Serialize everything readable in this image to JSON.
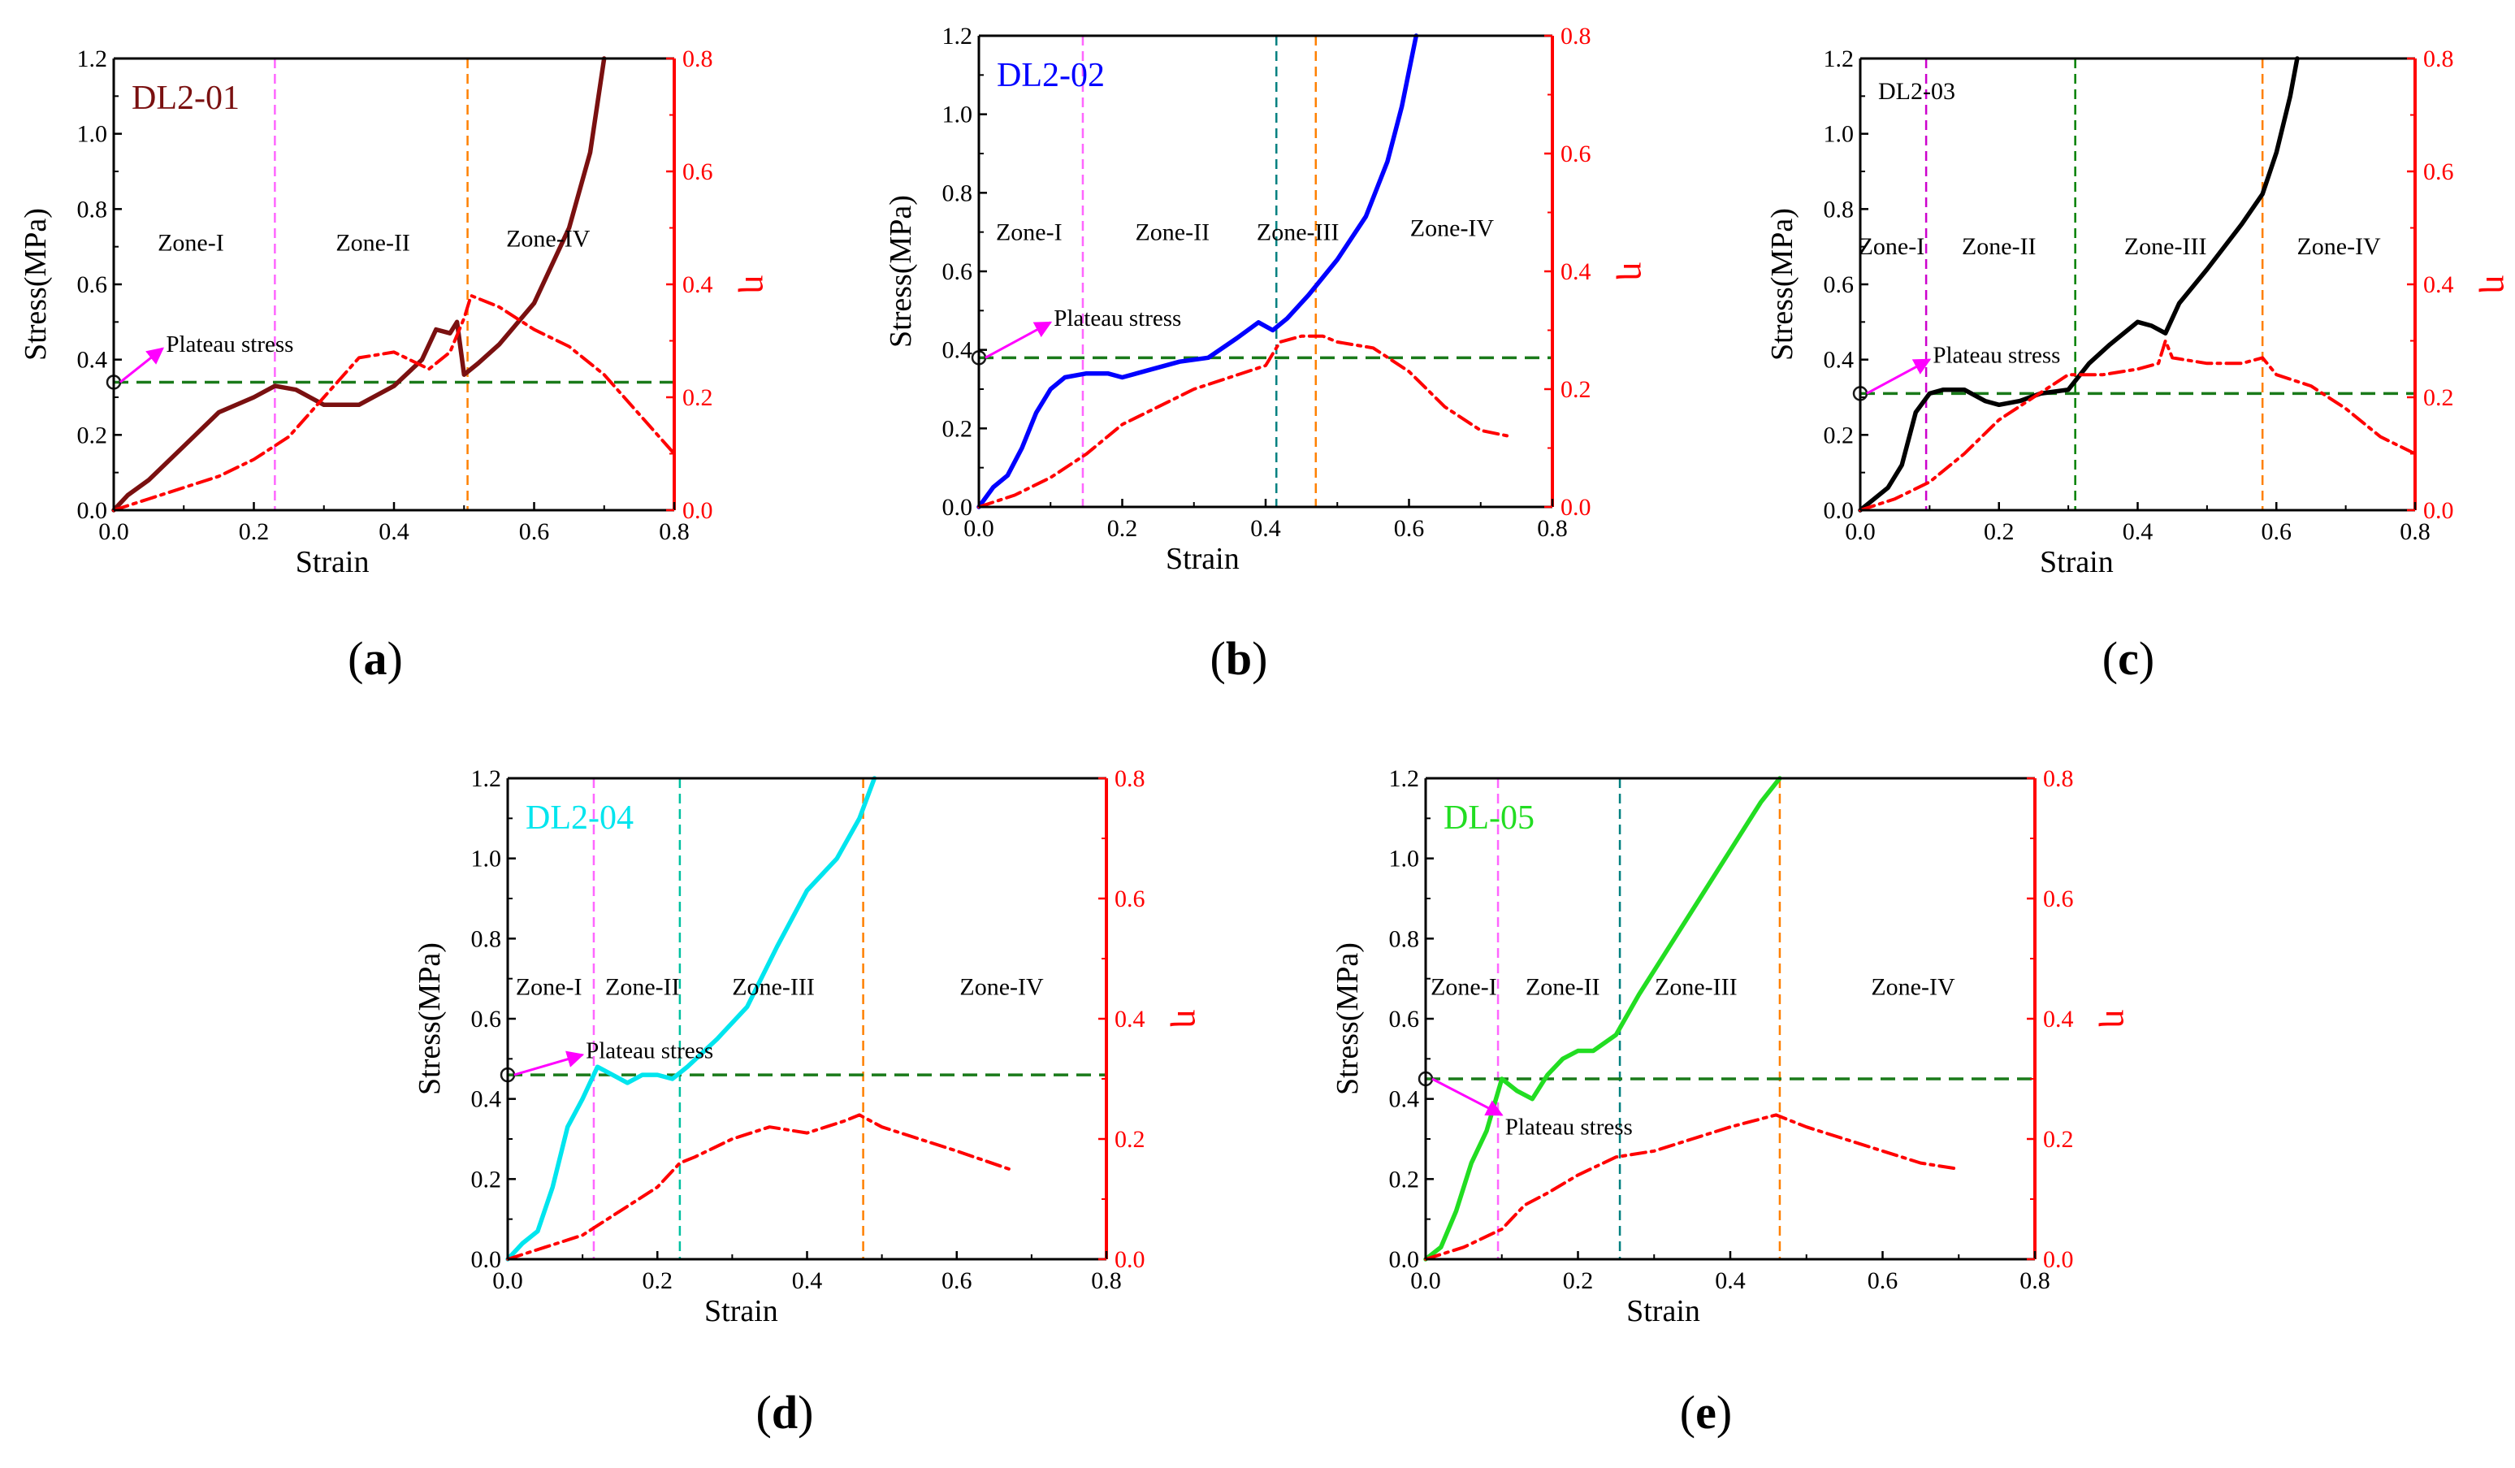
{
  "chart_data": [
    {
      "panel_label": "(a)",
      "type": "line",
      "title": "DL2-01",
      "title_color": "#7a1010",
      "xlabel": "Strain",
      "ylabel": "Stress(MPa)",
      "ylabel_right": "η",
      "xlim": [
        0,
        0.8
      ],
      "ylim": [
        0,
        1.2
      ],
      "ylim_right": [
        0,
        0.8
      ],
      "x_ticks": [
        "0.0",
        "0.2",
        "0.4",
        "0.6",
        "0.8"
      ],
      "y_ticks": [
        "0.0",
        "0.2",
        "0.4",
        "0.6",
        "0.8",
        "1.0",
        "1.2"
      ],
      "y_ticks_right": [
        "0.0",
        "0.2",
        "0.4",
        "0.6",
        "0.8"
      ],
      "plateau_stress": 0.34,
      "plateau_label": "Plateau stress",
      "plateau_arrow_to": [
        0.07,
        0.43
      ],
      "zone_lines": [
        {
          "x": 0.23,
          "color": "#ff66ff"
        },
        {
          "x": 0.505,
          "color": "#ff8000"
        }
      ],
      "zone_labels": [
        {
          "text": "Zone-I",
          "x": 0.11,
          "y": 0.69
        },
        {
          "text": "Zone-II",
          "x": 0.37,
          "y": 0.69
        },
        {
          "text": "Zone-IV",
          "x": 0.62,
          "y": 0.7
        }
      ],
      "series": [
        {
          "axis": "left",
          "color": "#7a1010",
          "style": "solid",
          "x": [
            0,
            0.02,
            0.05,
            0.1,
            0.15,
            0.2,
            0.23,
            0.26,
            0.3,
            0.35,
            0.4,
            0.44,
            0.46,
            0.48,
            0.49,
            0.5,
            0.52,
            0.55,
            0.6,
            0.65,
            0.68,
            0.7
          ],
          "y": [
            0,
            0.04,
            0.08,
            0.17,
            0.26,
            0.3,
            0.33,
            0.32,
            0.28,
            0.28,
            0.33,
            0.4,
            0.48,
            0.47,
            0.5,
            0.36,
            0.39,
            0.44,
            0.55,
            0.75,
            0.95,
            1.2
          ]
        },
        {
          "axis": "right",
          "color": "#ff0000",
          "style": "dashdot",
          "x": [
            0,
            0.05,
            0.1,
            0.15,
            0.2,
            0.25,
            0.3,
            0.35,
            0.4,
            0.45,
            0.48,
            0.5,
            0.51,
            0.55,
            0.6,
            0.65,
            0.7,
            0.75,
            0.8
          ],
          "y": [
            0,
            0.02,
            0.04,
            0.06,
            0.09,
            0.13,
            0.2,
            0.27,
            0.28,
            0.25,
            0.28,
            0.34,
            0.38,
            0.36,
            0.32,
            0.29,
            0.24,
            0.17,
            0.1
          ]
        }
      ]
    },
    {
      "panel_label": "(b)",
      "type": "line",
      "title": "DL2-02",
      "title_color": "#0000ff",
      "xlabel": "Strain",
      "ylabel": "Stress(MPa)",
      "ylabel_right": "η",
      "xlim": [
        0,
        0.8
      ],
      "ylim": [
        0,
        1.2
      ],
      "ylim_right": [
        0,
        0.8
      ],
      "x_ticks": [
        "0.0",
        "0.2",
        "0.4",
        "0.6",
        "0.8"
      ],
      "y_ticks": [
        "0.0",
        "0.2",
        "0.4",
        "0.6",
        "0.8",
        "1.0",
        "1.2"
      ],
      "y_ticks_right": [
        "0.0",
        "0.2",
        "0.4",
        "0.6",
        "0.8"
      ],
      "plateau_stress": 0.38,
      "plateau_label": "Plateau stress",
      "plateau_arrow_to": [
        0.1,
        0.47
      ],
      "zone_lines": [
        {
          "x": 0.145,
          "color": "#ff66ff"
        },
        {
          "x": 0.415,
          "color": "#008080"
        },
        {
          "x": 0.47,
          "color": "#ff8000"
        }
      ],
      "zone_labels": [
        {
          "text": "Zone-I",
          "x": 0.07,
          "y": 0.68
        },
        {
          "text": "Zone-II",
          "x": 0.27,
          "y": 0.68
        },
        {
          "text": "Zone-III",
          "x": 0.445,
          "y": 0.68
        },
        {
          "text": "Zone-IV",
          "x": 0.66,
          "y": 0.69
        }
      ],
      "series": [
        {
          "axis": "left",
          "color": "#0000ff",
          "style": "solid",
          "x": [
            0,
            0.02,
            0.04,
            0.06,
            0.08,
            0.1,
            0.12,
            0.15,
            0.18,
            0.2,
            0.24,
            0.28,
            0.32,
            0.36,
            0.39,
            0.41,
            0.43,
            0.46,
            0.5,
            0.54,
            0.57,
            0.59,
            0.61
          ],
          "y": [
            0,
            0.05,
            0.08,
            0.15,
            0.24,
            0.3,
            0.33,
            0.34,
            0.34,
            0.33,
            0.35,
            0.37,
            0.38,
            0.43,
            0.47,
            0.45,
            0.48,
            0.54,
            0.63,
            0.74,
            0.88,
            1.02,
            1.2
          ]
        },
        {
          "axis": "right",
          "color": "#ff0000",
          "style": "dashdot",
          "x": [
            0,
            0.05,
            0.1,
            0.15,
            0.2,
            0.25,
            0.3,
            0.35,
            0.4,
            0.42,
            0.45,
            0.48,
            0.5,
            0.55,
            0.6,
            0.65,
            0.7,
            0.74
          ],
          "y": [
            0,
            0.02,
            0.05,
            0.09,
            0.14,
            0.17,
            0.2,
            0.22,
            0.24,
            0.28,
            0.29,
            0.29,
            0.28,
            0.27,
            0.23,
            0.17,
            0.13,
            0.12
          ]
        }
      ]
    },
    {
      "panel_label": "(c)",
      "type": "line",
      "title": "DL2-03",
      "title_color": "#000000",
      "xlabel": "Strain",
      "ylabel": "Stress(MPa)",
      "ylabel_right": "η",
      "xlim": [
        0,
        0.8
      ],
      "ylim": [
        0,
        1.2
      ],
      "ylim_right": [
        0,
        0.8
      ],
      "x_ticks": [
        "0.0",
        "0.2",
        "0.4",
        "0.6",
        "0.8"
      ],
      "y_ticks": [
        "0.0",
        "0.2",
        "0.4",
        "0.6",
        "0.8",
        "1.0",
        "1.2"
      ],
      "y_ticks_right": [
        "0.0",
        "0.2",
        "0.4",
        "0.6",
        "0.8"
      ],
      "plateau_stress": 0.31,
      "plateau_label": "Plateau stress",
      "plateau_arrow_to": [
        0.1,
        0.4
      ],
      "zone_lines": [
        {
          "x": 0.095,
          "color": "#cc00cc"
        },
        {
          "x": 0.31,
          "color": "#008000"
        },
        {
          "x": 0.58,
          "color": "#ff8000"
        }
      ],
      "zone_labels": [
        {
          "text": "Zone-I",
          "x": 0.045,
          "y": 0.68
        },
        {
          "text": "Zone-II",
          "x": 0.2,
          "y": 0.68
        },
        {
          "text": "Zone-III",
          "x": 0.44,
          "y": 0.68
        },
        {
          "text": "Zone-IV",
          "x": 0.69,
          "y": 0.68
        }
      ],
      "series": [
        {
          "axis": "left",
          "color": "#000000",
          "style": "solid",
          "x": [
            0,
            0.02,
            0.04,
            0.06,
            0.08,
            0.1,
            0.12,
            0.15,
            0.18,
            0.2,
            0.23,
            0.26,
            0.3,
            0.33,
            0.36,
            0.4,
            0.42,
            0.44,
            0.46,
            0.5,
            0.55,
            0.58,
            0.6,
            0.62,
            0.63
          ],
          "y": [
            0,
            0.03,
            0.06,
            0.12,
            0.26,
            0.31,
            0.32,
            0.32,
            0.29,
            0.28,
            0.29,
            0.31,
            0.32,
            0.39,
            0.44,
            0.5,
            0.49,
            0.47,
            0.55,
            0.64,
            0.76,
            0.84,
            0.95,
            1.1,
            1.2
          ]
        },
        {
          "axis": "right",
          "color": "#ff0000",
          "style": "dashdot",
          "x": [
            0,
            0.05,
            0.1,
            0.15,
            0.2,
            0.25,
            0.3,
            0.35,
            0.4,
            0.43,
            0.44,
            0.45,
            0.5,
            0.55,
            0.58,
            0.6,
            0.65,
            0.7,
            0.75,
            0.8
          ],
          "y": [
            0,
            0.02,
            0.05,
            0.1,
            0.16,
            0.2,
            0.24,
            0.24,
            0.25,
            0.26,
            0.3,
            0.27,
            0.26,
            0.26,
            0.27,
            0.24,
            0.22,
            0.18,
            0.13,
            0.1
          ]
        }
      ]
    },
    {
      "panel_label": "(d)",
      "type": "line",
      "title": "DL2-04",
      "title_color": "#00e5ee",
      "xlabel": "Strain",
      "ylabel": "Stress(MPa)",
      "ylabel_right": "η",
      "xlim": [
        0,
        0.8
      ],
      "ylim": [
        0,
        1.2
      ],
      "ylim_right": [
        0,
        0.8
      ],
      "x_ticks": [
        "0.0",
        "0.2",
        "0.4",
        "0.6",
        "0.8"
      ],
      "y_ticks": [
        "0.0",
        "0.2",
        "0.4",
        "0.6",
        "0.8",
        "1.0",
        "1.2"
      ],
      "y_ticks_right": [
        "0.0",
        "0.2",
        "0.4",
        "0.6",
        "0.8"
      ],
      "plateau_stress": 0.46,
      "plateau_label": "Plateau stress",
      "plateau_arrow_to": [
        0.1,
        0.51
      ],
      "zone_lines": [
        {
          "x": 0.115,
          "color": "#ff66ff"
        },
        {
          "x": 0.23,
          "color": "#00c0a0"
        },
        {
          "x": 0.475,
          "color": "#ff8000"
        }
      ],
      "zone_labels": [
        {
          "text": "Zone-I",
          "x": 0.055,
          "y": 0.66
        },
        {
          "text": "Zone-II",
          "x": 0.18,
          "y": 0.66
        },
        {
          "text": "Zone-III",
          "x": 0.355,
          "y": 0.66
        },
        {
          "text": "Zone-IV",
          "x": 0.66,
          "y": 0.66
        }
      ],
      "series": [
        {
          "axis": "left",
          "color": "#00e5ee",
          "style": "solid",
          "x": [
            0,
            0.02,
            0.04,
            0.06,
            0.08,
            0.1,
            0.12,
            0.14,
            0.16,
            0.18,
            0.2,
            0.22,
            0.24,
            0.28,
            0.32,
            0.36,
            0.4,
            0.44,
            0.47,
            0.49
          ],
          "y": [
            0,
            0.04,
            0.07,
            0.18,
            0.33,
            0.4,
            0.48,
            0.46,
            0.44,
            0.46,
            0.46,
            0.45,
            0.48,
            0.55,
            0.63,
            0.78,
            0.92,
            1.0,
            1.1,
            1.2
          ]
        },
        {
          "axis": "right",
          "color": "#ff0000",
          "style": "dashdot",
          "x": [
            0,
            0.05,
            0.1,
            0.15,
            0.2,
            0.23,
            0.25,
            0.3,
            0.35,
            0.4,
            0.45,
            0.47,
            0.5,
            0.55,
            0.6,
            0.67
          ],
          "y": [
            0,
            0.02,
            0.04,
            0.08,
            0.12,
            0.16,
            0.17,
            0.2,
            0.22,
            0.21,
            0.23,
            0.24,
            0.22,
            0.2,
            0.18,
            0.15
          ]
        }
      ]
    },
    {
      "panel_label": "(e)",
      "type": "line",
      "title": "DL-05",
      "title_color": "#22dd22",
      "xlabel": "Strain",
      "ylabel": "Stress(MPa)",
      "ylabel_right": "η",
      "xlim": [
        0,
        0.8
      ],
      "ylim": [
        0,
        1.2
      ],
      "ylim_right": [
        0,
        0.8
      ],
      "x_ticks": [
        "0.0",
        "0.2",
        "0.4",
        "0.6",
        "0.8"
      ],
      "y_ticks": [
        "0.0",
        "0.2",
        "0.4",
        "0.6",
        "0.8",
        "1.0",
        "1.2"
      ],
      "y_ticks_right": [
        "0.0",
        "0.2",
        "0.4",
        "0.6",
        "0.8"
      ],
      "plateau_stress": 0.45,
      "plateau_label": "Plateau stress",
      "plateau_arrow_to": [
        0.1,
        0.36
      ],
      "zone_lines": [
        {
          "x": 0.095,
          "color": "#ff66ff"
        },
        {
          "x": 0.255,
          "color": "#008080"
        },
        {
          "x": 0.465,
          "color": "#ff8000"
        }
      ],
      "zone_labels": [
        {
          "text": "Zone-I",
          "x": 0.05,
          "y": 0.66
        },
        {
          "text": "Zone-II",
          "x": 0.18,
          "y": 0.66
        },
        {
          "text": "Zone-III",
          "x": 0.355,
          "y": 0.66
        },
        {
          "text": "Zone-IV",
          "x": 0.64,
          "y": 0.66
        }
      ],
      "series": [
        {
          "axis": "left",
          "color": "#22dd22",
          "style": "solid",
          "x": [
            0,
            0.02,
            0.04,
            0.06,
            0.08,
            0.1,
            0.12,
            0.14,
            0.16,
            0.18,
            0.2,
            0.22,
            0.25,
            0.28,
            0.32,
            0.36,
            0.4,
            0.44,
            0.465
          ],
          "y": [
            0,
            0.03,
            0.12,
            0.24,
            0.32,
            0.45,
            0.42,
            0.4,
            0.46,
            0.5,
            0.52,
            0.52,
            0.56,
            0.66,
            0.78,
            0.9,
            1.02,
            1.14,
            1.2
          ]
        },
        {
          "axis": "right",
          "color": "#ff0000",
          "style": "dashdot",
          "x": [
            0,
            0.05,
            0.1,
            0.13,
            0.16,
            0.2,
            0.25,
            0.3,
            0.35,
            0.4,
            0.46,
            0.5,
            0.55,
            0.6,
            0.65,
            0.7
          ],
          "y": [
            0,
            0.02,
            0.05,
            0.09,
            0.11,
            0.14,
            0.17,
            0.18,
            0.2,
            0.22,
            0.24,
            0.22,
            0.2,
            0.18,
            0.16,
            0.15
          ]
        }
      ]
    }
  ]
}
